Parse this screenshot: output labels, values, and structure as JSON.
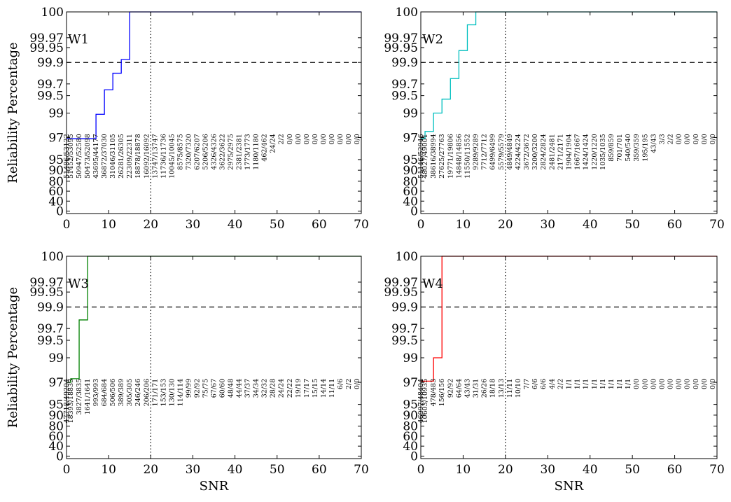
{
  "figure": {
    "ylabel": "Reliability Percentage",
    "xlabel": "SNR"
  },
  "chart_data": [
    {
      "type": "line",
      "panel_label": "W1",
      "color": "#0000ff",
      "xlabel": "",
      "ylabel": "Reliability Percentage",
      "xlim": [
        0,
        70
      ],
      "xticks": [
        "0",
        "10",
        "20",
        "30",
        "40",
        "50",
        "60",
        "70"
      ],
      "yticks": [
        "0",
        "40",
        "60",
        "80",
        "90",
        "95",
        "97",
        "99",
        "99.5",
        "99.7",
        "99.9",
        "99.95",
        "99.97",
        "100"
      ],
      "threshold_y": 99.9,
      "marker_x": 20,
      "steps": [
        [
          0,
          96.9
        ],
        [
          1,
          96.9
        ],
        [
          2,
          96.9
        ],
        [
          3,
          96.9
        ],
        [
          4,
          96.9
        ],
        [
          5,
          96.9
        ],
        [
          6,
          96.9
        ],
        [
          7,
          98.9
        ],
        [
          8,
          98.9
        ],
        [
          9,
          99.6
        ],
        [
          10,
          99.6
        ],
        [
          11,
          99.8
        ],
        [
          12,
          99.8
        ],
        [
          13,
          99.91
        ],
        [
          14,
          99.91
        ],
        [
          15,
          100
        ],
        [
          70,
          100
        ]
      ],
      "annotations": [
        {
          "x": 0,
          "text": "51486/53122"
        },
        {
          "x": 1,
          "text": "51452/53095"
        },
        {
          "x": 3,
          "text": "50947/52580"
        },
        {
          "x": 5,
          "text": "50473/52098"
        },
        {
          "x": 7,
          "text": "43695/44177"
        },
        {
          "x": 9,
          "text": "36872/37030"
        },
        {
          "x": 11,
          "text": "31046/31105"
        },
        {
          "x": 13,
          "text": "26281/26305"
        },
        {
          "x": 15,
          "text": "22309/22311"
        },
        {
          "x": 17,
          "text": "18878/18878"
        },
        {
          "x": 19,
          "text": "16092/16092"
        },
        {
          "x": 21,
          "text": "13747/13747"
        },
        {
          "x": 23,
          "text": "11736/11736"
        },
        {
          "x": 25,
          "text": "10045/10045"
        },
        {
          "x": 27,
          "text": "8575/8575"
        },
        {
          "x": 29,
          "text": "7320/7320"
        },
        {
          "x": 31,
          "text": "6207/6207"
        },
        {
          "x": 33,
          "text": "5206/5206"
        },
        {
          "x": 35,
          "text": "4326/4326"
        },
        {
          "x": 37,
          "text": "3622/3622"
        },
        {
          "x": 39,
          "text": "2975/2975"
        },
        {
          "x": 41,
          "text": "2381/2381"
        },
        {
          "x": 43,
          "text": "1773/1773"
        },
        {
          "x": 45,
          "text": "1180/1180"
        },
        {
          "x": 47,
          "text": "462/462"
        },
        {
          "x": 49,
          "text": "24/24"
        },
        {
          "x": 51,
          "text": "2/2"
        },
        {
          "x": 53,
          "text": "0/0"
        },
        {
          "x": 55,
          "text": "0/0"
        },
        {
          "x": 57,
          "text": "0/0"
        },
        {
          "x": 59,
          "text": "0/0"
        },
        {
          "x": 61,
          "text": "0/0"
        },
        {
          "x": 63,
          "text": "0/0"
        },
        {
          "x": 65,
          "text": "0/0"
        },
        {
          "x": 67,
          "text": "0/0"
        },
        {
          "x": 69,
          "text": "0/0"
        }
      ]
    },
    {
      "type": "line",
      "panel_label": "W2",
      "color": "#00bfbf",
      "xlabel": "",
      "ylabel": "",
      "xlim": [
        0,
        70
      ],
      "xticks": [
        "0",
        "10",
        "20",
        "30",
        "40",
        "50",
        "60",
        "70"
      ],
      "yticks": [
        "0",
        "40",
        "60",
        "80",
        "90",
        "95",
        "97",
        "99",
        "99.5",
        "99.7",
        "99.9",
        "99.95",
        "99.97",
        "100"
      ],
      "threshold_y": 99.9,
      "marker_x": 20,
      "steps": [
        [
          0,
          96.9
        ],
        [
          1,
          97.5
        ],
        [
          3,
          99
        ],
        [
          5,
          99.4
        ],
        [
          7,
          99.75
        ],
        [
          9,
          99.94
        ],
        [
          11,
          99.985
        ],
        [
          13,
          100
        ],
        [
          70,
          100
        ]
      ],
      "annotations": [
        {
          "x": 0,
          "text": "51146/52946"
        },
        {
          "x": 1,
          "text": "48027/49001"
        },
        {
          "x": 3,
          "text": "38616/38994"
        },
        {
          "x": 5,
          "text": "27625/27763"
        },
        {
          "x": 7,
          "text": "19771/19806"
        },
        {
          "x": 9,
          "text": "14848/14856"
        },
        {
          "x": 11,
          "text": "11550/11552"
        },
        {
          "x": 13,
          "text": "9289/9289"
        },
        {
          "x": 15,
          "text": "7712/7712"
        },
        {
          "x": 17,
          "text": "6499/6499"
        },
        {
          "x": 19,
          "text": "5579/5579"
        },
        {
          "x": 21,
          "text": "4849/4849"
        },
        {
          "x": 23,
          "text": "4224/4224"
        },
        {
          "x": 25,
          "text": "3672/3672"
        },
        {
          "x": 27,
          "text": "3200/3200"
        },
        {
          "x": 29,
          "text": "2824/2824"
        },
        {
          "x": 31,
          "text": "2481/2481"
        },
        {
          "x": 33,
          "text": "2171/2171"
        },
        {
          "x": 35,
          "text": "1904/1904"
        },
        {
          "x": 37,
          "text": "1667/1667"
        },
        {
          "x": 39,
          "text": "1424/1424"
        },
        {
          "x": 41,
          "text": "1220/1220"
        },
        {
          "x": 43,
          "text": "1035/1035"
        },
        {
          "x": 45,
          "text": "859/859"
        },
        {
          "x": 47,
          "text": "701/701"
        },
        {
          "x": 49,
          "text": "540/540"
        },
        {
          "x": 51,
          "text": "359/359"
        },
        {
          "x": 53,
          "text": "195/195"
        },
        {
          "x": 55,
          "text": "43/43"
        },
        {
          "x": 57,
          "text": "3/3"
        },
        {
          "x": 59,
          "text": "2/2"
        },
        {
          "x": 61,
          "text": "0/0"
        },
        {
          "x": 63,
          "text": "0/0"
        },
        {
          "x": 65,
          "text": "0/0"
        },
        {
          "x": 67,
          "text": "0/0"
        },
        {
          "x": 69,
          "text": "0/0"
        }
      ]
    },
    {
      "type": "line",
      "panel_label": "W3",
      "color": "#008000",
      "xlabel": "SNR",
      "ylabel": "Reliability Percentage",
      "xlim": [
        0,
        70
      ],
      "xticks": [
        "0",
        "10",
        "20",
        "30",
        "40",
        "50",
        "60",
        "70"
      ],
      "yticks": [
        "0",
        "40",
        "60",
        "80",
        "90",
        "95",
        "97",
        "99",
        "99.5",
        "99.7",
        "99.9",
        "99.95",
        "99.97",
        "100"
      ],
      "threshold_y": 99.9,
      "marker_x": 20,
      "steps": [
        [
          0,
          97
        ],
        [
          1,
          97.3
        ],
        [
          3,
          99.78
        ],
        [
          5,
          100
        ],
        [
          70,
          100
        ]
      ],
      "annotations": [
        {
          "x": 0,
          "text": "47718/49204"
        },
        {
          "x": 1,
          "text": "18393/18833"
        },
        {
          "x": 3,
          "text": "3827/3835"
        },
        {
          "x": 5,
          "text": "1641/1641"
        },
        {
          "x": 7,
          "text": "993/993"
        },
        {
          "x": 9,
          "text": "684/684"
        },
        {
          "x": 11,
          "text": "506/506"
        },
        {
          "x": 13,
          "text": "389/389"
        },
        {
          "x": 15,
          "text": "305/305"
        },
        {
          "x": 17,
          "text": "246/246"
        },
        {
          "x": 19,
          "text": "206/206"
        },
        {
          "x": 21,
          "text": "171/171"
        },
        {
          "x": 23,
          "text": "153/153"
        },
        {
          "x": 25,
          "text": "130/130"
        },
        {
          "x": 27,
          "text": "114/114"
        },
        {
          "x": 29,
          "text": "99/99"
        },
        {
          "x": 31,
          "text": "92/92"
        },
        {
          "x": 33,
          "text": "75/75"
        },
        {
          "x": 35,
          "text": "67/67"
        },
        {
          "x": 37,
          "text": "60/60"
        },
        {
          "x": 39,
          "text": "48/48"
        },
        {
          "x": 41,
          "text": "44/44"
        },
        {
          "x": 43,
          "text": "37/37"
        },
        {
          "x": 45,
          "text": "34/34"
        },
        {
          "x": 47,
          "text": "32/32"
        },
        {
          "x": 49,
          "text": "28/28"
        },
        {
          "x": 51,
          "text": "24/24"
        },
        {
          "x": 53,
          "text": "22/22"
        },
        {
          "x": 55,
          "text": "19/19"
        },
        {
          "x": 57,
          "text": "17/17"
        },
        {
          "x": 59,
          "text": "15/15"
        },
        {
          "x": 61,
          "text": "14/14"
        },
        {
          "x": 63,
          "text": "11/11"
        },
        {
          "x": 65,
          "text": "6/6"
        },
        {
          "x": 67,
          "text": "2/2"
        },
        {
          "x": 69,
          "text": "0/0"
        }
      ]
    },
    {
      "type": "line",
      "panel_label": "W4",
      "color": "#ff0000",
      "xlabel": "SNR",
      "ylabel": "",
      "xlim": [
        0,
        70
      ],
      "xticks": [
        "0",
        "10",
        "20",
        "30",
        "40",
        "50",
        "60",
        "70"
      ],
      "yticks": [
        "0",
        "40",
        "60",
        "80",
        "90",
        "95",
        "97",
        "99",
        "99.5",
        "99.7",
        "99.9",
        "99.95",
        "99.97",
        "100"
      ],
      "threshold_y": 99.9,
      "marker_x": 20,
      "steps": [
        [
          0,
          97.1
        ],
        [
          3,
          99
        ],
        [
          5,
          100
        ],
        [
          70,
          100
        ]
      ],
      "annotations": [
        {
          "x": 0,
          "text": "46997/48404"
        },
        {
          "x": 1,
          "text": "10603/10935"
        },
        {
          "x": 3,
          "text": "478/483"
        },
        {
          "x": 5,
          "text": "156/156"
        },
        {
          "x": 7,
          "text": "92/92"
        },
        {
          "x": 9,
          "text": "64/64"
        },
        {
          "x": 11,
          "text": "43/43"
        },
        {
          "x": 13,
          "text": "31/31"
        },
        {
          "x": 15,
          "text": "26/26"
        },
        {
          "x": 17,
          "text": "18/18"
        },
        {
          "x": 19,
          "text": "13/13"
        },
        {
          "x": 21,
          "text": "11/11"
        },
        {
          "x": 23,
          "text": "10/10"
        },
        {
          "x": 25,
          "text": "7/7"
        },
        {
          "x": 27,
          "text": "6/6"
        },
        {
          "x": 29,
          "text": "6/6"
        },
        {
          "x": 31,
          "text": "4/4"
        },
        {
          "x": 33,
          "text": "2/2"
        },
        {
          "x": 35,
          "text": "1/1"
        },
        {
          "x": 37,
          "text": "1/1"
        },
        {
          "x": 39,
          "text": "1/1"
        },
        {
          "x": 41,
          "text": "1/1"
        },
        {
          "x": 43,
          "text": "1/1"
        },
        {
          "x": 45,
          "text": "1/1"
        },
        {
          "x": 47,
          "text": "1/1"
        },
        {
          "x": 49,
          "text": "1/1"
        },
        {
          "x": 51,
          "text": "0/0"
        },
        {
          "x": 53,
          "text": "0/0"
        },
        {
          "x": 55,
          "text": "0/0"
        },
        {
          "x": 57,
          "text": "0/0"
        },
        {
          "x": 59,
          "text": "0/0"
        },
        {
          "x": 61,
          "text": "0/0"
        },
        {
          "x": 63,
          "text": "0/0"
        },
        {
          "x": 65,
          "text": "0/0"
        },
        {
          "x": 67,
          "text": "0/0"
        },
        {
          "x": 69,
          "text": "0/0"
        }
      ]
    }
  ]
}
